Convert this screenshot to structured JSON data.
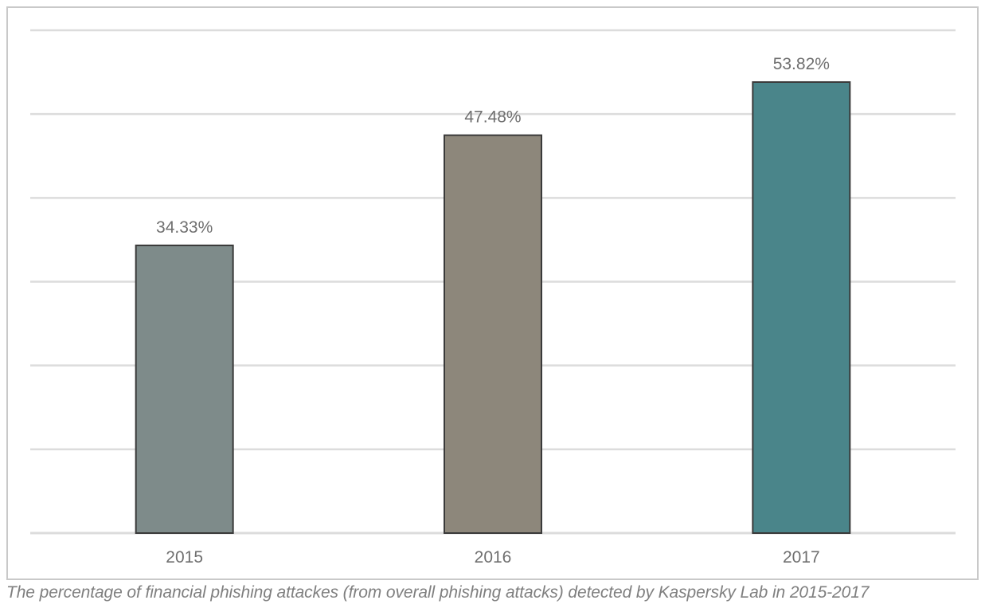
{
  "chart_data": {
    "type": "bar",
    "categories": [
      "2015",
      "2016",
      "2017"
    ],
    "values": [
      34.33,
      47.48,
      53.82
    ],
    "value_labels": [
      "34.33%",
      "47.48%",
      "53.82%"
    ],
    "unit": "%",
    "ylim": [
      0,
      60
    ],
    "grid": true,
    "y_tick_labels_visible": false,
    "legend": "none",
    "bar_colors": [
      "#7e8b8a",
      "#8d877b",
      "#4a858a"
    ],
    "bar_outline_color": "#3a3a3a",
    "gridline_color": "#dcdcdc",
    "label_color": "#6f6f6f"
  },
  "caption": "The percentage of financial phishing attackes (from overall phishing attacks) detected by Kaspersky Lab in 2015-2017"
}
